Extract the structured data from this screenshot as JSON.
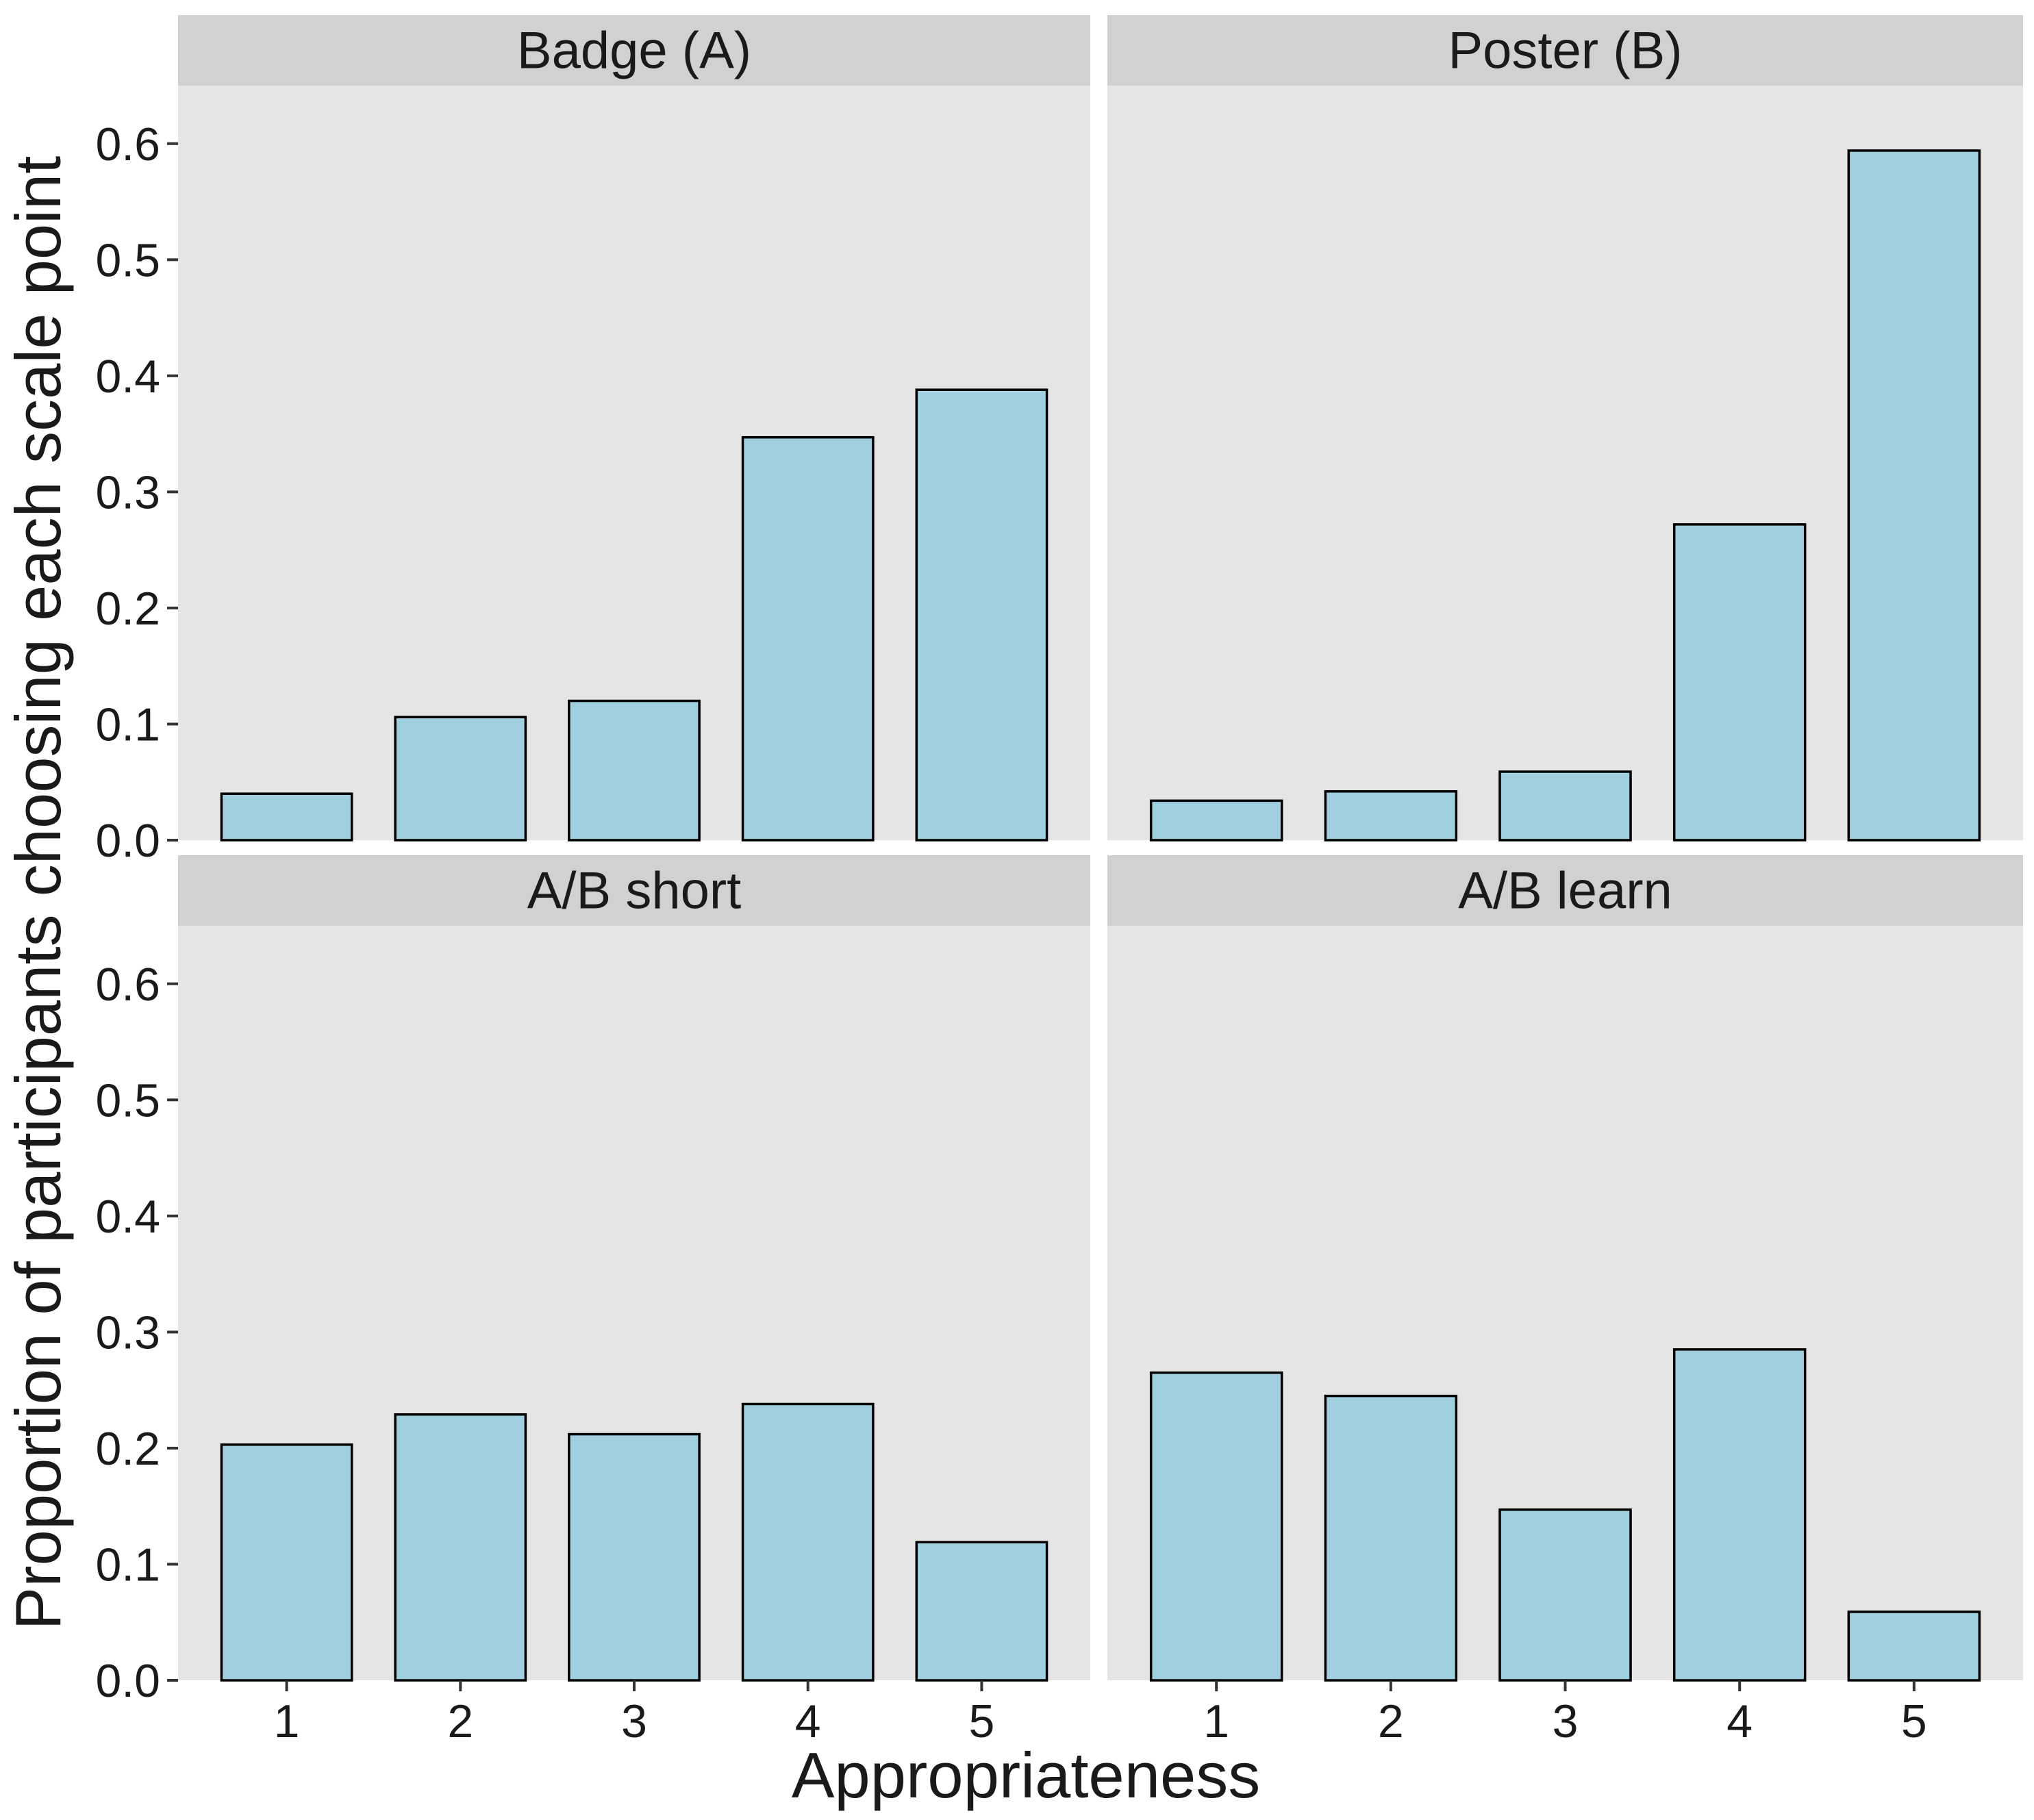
{
  "chart_data": {
    "type": "bar",
    "layout": "facet-grid-2x2",
    "xlabel": "Appropriateness",
    "ylabel": "Proportion of participants choosing each scale point",
    "categories": [
      "1",
      "2",
      "3",
      "4",
      "5"
    ],
    "ylim": [
      0,
      0.65
    ],
    "yticks": [
      "0.0",
      "0.1",
      "0.2",
      "0.3",
      "0.4",
      "0.5",
      "0.6"
    ],
    "grid": false,
    "legend": "none",
    "colors": {
      "bar_fill": "#A0CFE0",
      "bar_outline": "#000000",
      "panel_background": "#E5E5E5",
      "strip_background": "#D1D1D1"
    },
    "facets": [
      {
        "title": "Badge (A)",
        "values": [
          0.04,
          0.106,
          0.12,
          0.347,
          0.388
        ]
      },
      {
        "title": "Poster (B)",
        "values": [
          0.034,
          0.042,
          0.059,
          0.272,
          0.594
        ]
      },
      {
        "title": "A/B short",
        "values": [
          0.203,
          0.229,
          0.212,
          0.238,
          0.119
        ]
      },
      {
        "title": "A/B learn",
        "values": [
          0.265,
          0.245,
          0.147,
          0.285,
          0.059
        ]
      }
    ]
  }
}
